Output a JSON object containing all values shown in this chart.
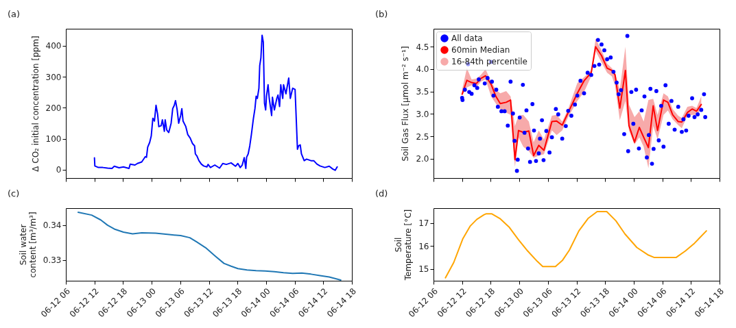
{
  "chart_data": [
    {
      "type": "line",
      "title": "(a)",
      "ylabel": "Δ CO₂ initial concentration [ppm]",
      "tick_labels": "y",
      "xlim": [
        "--06-12T06:00",
        "--06-14T18:00"
      ],
      "xticks": [
        {
          "value": "--06-12T06:00",
          "label": "06-12 06"
        },
        {
          "value": "--06-12T12:00",
          "label": "06-12 12"
        },
        {
          "value": "--06-12T18:00",
          "label": "06-12 18"
        },
        {
          "value": "--06-13T00:00",
          "label": "06-13 00"
        },
        {
          "value": "--06-13T06:00",
          "label": "06-13 06"
        },
        {
          "value": "--06-13T12:00",
          "label": "06-13 12"
        },
        {
          "value": "--06-13T18:00",
          "label": "06-13 18"
        },
        {
          "value": "--06-14T00:00",
          "label": "06-14 00"
        },
        {
          "value": "--06-14T06:00",
          "label": "06-14 06"
        },
        {
          "value": "--06-14T12:00",
          "label": "06-14 12"
        },
        {
          "value": "--06-14T18:00",
          "label": "06-14 18"
        }
      ],
      "ylim": [
        -27,
        455
      ],
      "yticks": [
        0,
        100,
        200,
        300,
        400
      ],
      "x": [
        "--06-12T12:00",
        "--06-12T12:05",
        "--06-12T12:50",
        "--06-12T13:45",
        "--06-12T14:45",
        "--06-12T15:40",
        "--06-12T16:10",
        "--06-12T17:10",
        "--06-12T18:05",
        "--06-12T19:15",
        "--06-12T19:30",
        "--06-12T20:30",
        "--06-12T21:00",
        "--06-12T21:55",
        "--06-12T22:40",
        "--06-12T22:55",
        "--06-12T23:10",
        "--06-12T23:35",
        "--06-12T23:55",
        "--06-13T00:15",
        "--06-13T00:35",
        "--06-13T00:55",
        "--06-13T01:15",
        "--06-13T01:30",
        "--06-13T02:00",
        "--06-13T02:15",
        "--06-13T02:40",
        "--06-13T02:50",
        "--06-13T03:10",
        "--06-13T03:35",
        "--06-13T04:05",
        "--06-13T04:25",
        "--06-13T04:45",
        "--06-13T05:00",
        "--06-13T05:20",
        "--06-13T05:40",
        "--06-13T06:05",
        "--06-13T06:20",
        "--06-13T06:35",
        "--06-13T07:10",
        "--06-13T07:35",
        "--06-13T08:05",
        "--06-13T08:35",
        "--06-13T09:00",
        "--06-13T09:10",
        "--06-13T09:30",
        "--06-13T09:55",
        "--06-13T10:25",
        "--06-13T10:55",
        "--06-13T11:35",
        "--06-13T11:50",
        "--06-13T12:20",
        "--06-13T13:15",
        "--06-13T14:15",
        "--06-13T14:55",
        "--06-13T15:40",
        "--06-13T16:40",
        "--06-13T17:35",
        "--06-13T18:05",
        "--06-13T18:35",
        "--06-13T19:00",
        "--06-13T19:25",
        "--06-13T19:45",
        "--06-13T19:55",
        "--06-13T20:15",
        "--06-13T20:35",
        "--06-13T20:55",
        "--06-13T21:20",
        "--06-13T21:40",
        "--06-13T21:55",
        "--06-13T22:10",
        "--06-13T22:30",
        "--06-13T22:40",
        "--06-13T22:55",
        "--06-13T23:10",
        "--06-13T23:25",
        "--06-13T23:40",
        "--06-13T23:55",
        "--06-14T00:05",
        "--06-14T00:25",
        "--06-14T00:40",
        "--06-14T01:10",
        "--06-14T01:20",
        "--06-14T01:45",
        "--06-14T02:15",
        "--06-14T02:30",
        "--06-14T02:50",
        "--06-14T03:05",
        "--06-14T03:30",
        "--06-14T03:40",
        "--06-14T04:10",
        "--06-14T04:45",
        "--06-14T05:05",
        "--06-14T05:35",
        "--06-14T06:05",
        "--06-14T06:35",
        "--06-14T06:50",
        "--06-14T07:10",
        "--06-14T07:25",
        "--06-14T08:00",
        "--06-14T08:30",
        "--06-14T09:25",
        "--06-14T10:00",
        "--06-14T10:40",
        "--06-14T11:20",
        "--06-14T12:20",
        "--06-14T13:15",
        "--06-14T14:00",
        "--06-14T14:30",
        "--06-14T14:55"
      ],
      "series": [
        {
          "color": "#0000ff",
          "values": [
            38,
            12,
            7,
            7,
            5,
            4,
            11,
            6,
            9,
            4,
            18,
            15,
            20,
            25,
            42,
            40,
            73,
            88,
            109,
            166,
            157,
            208,
            179,
            139,
            142,
            161,
            124,
            161,
            128,
            120,
            150,
            197,
            208,
            223,
            195,
            150,
            175,
            197,
            157,
            139,
            113,
            102,
            84,
            77,
            51,
            44,
            29,
            18,
            12,
            9,
            17,
            7,
            15,
            5,
            20,
            17,
            22,
            11,
            20,
            7,
            15,
            39,
            4,
            40,
            51,
            77,
            113,
            164,
            197,
            237,
            230,
            263,
            336,
            361,
            434,
            412,
            215,
            193,
            237,
            274,
            230,
            175,
            234,
            193,
            230,
            241,
            204,
            274,
            230,
            274,
            245,
            296,
            230,
            263,
            259,
            66,
            77,
            80,
            51,
            29,
            34,
            29,
            29,
            18,
            12,
            7,
            11,
            2,
            -2,
            9
          ]
        }
      ]
    },
    {
      "type": "line",
      "title": "(b)",
      "ylabel": "Soil Gas Flux [μmol m⁻² s⁻¹]",
      "tick_labels": "y",
      "legend": "top left",
      "xlim": [
        "--06-12T06:00",
        "--06-14T18:00"
      ],
      "xticks": [
        {
          "value": "--06-12T06:00",
          "label": "06-12 06"
        },
        {
          "value": "--06-12T12:00",
          "label": "06-12 12"
        },
        {
          "value": "--06-12T18:00",
          "label": "06-12 18"
        },
        {
          "value": "--06-13T00:00",
          "label": "06-13 00"
        },
        {
          "value": "--06-13T06:00",
          "label": "06-13 06"
        },
        {
          "value": "--06-13T12:00",
          "label": "06-13 12"
        },
        {
          "value": "--06-13T18:00",
          "label": "06-13 18"
        },
        {
          "value": "--06-14T00:00",
          "label": "06-14 00"
        },
        {
          "value": "--06-14T06:00",
          "label": "06-14 06"
        },
        {
          "value": "--06-14T12:00",
          "label": "06-14 12"
        },
        {
          "value": "--06-14T18:00",
          "label": "06-14 18"
        }
      ],
      "ylim": [
        1.57,
        4.9
      ],
      "yticks": [
        {
          "value": 2,
          "label": "2.0"
        },
        {
          "value": 2.5,
          "label": "2.5"
        },
        {
          "value": 3,
          "label": "3.0"
        },
        {
          "value": 3.5,
          "label": "3.5"
        },
        {
          "value": 4,
          "label": "4.0"
        },
        {
          "value": 4.5,
          "label": "4.5"
        }
      ],
      "series": [
        {
          "name": "All data",
          "type": "scatter",
          "marker": "circle",
          "color": "#0000ff",
          "x": [
            "--06-12T12:00",
            "--06-12T12:05",
            "--06-12T12:35",
            "--06-12T13:15",
            "--06-12T13:30",
            "--06-12T14:00",
            "--06-12T14:35",
            "--06-12T15:10",
            "--06-12T15:30",
            "--06-12T16:45",
            "--06-12T17:20",
            "--06-12T18:05",
            "--06-12T18:15",
            "--06-12T18:35",
            "--06-12T19:10",
            "--06-12T19:30",
            "--06-12T20:15",
            "--06-12T20:55",
            "--06-12T21:35",
            "--06-12T22:10",
            "--06-12T22:40",
            "--06-12T23:00",
            "--06-12T23:30",
            "--06-12T23:40",
            "--06-13T00:05",
            "--06-13T00:45",
            "--06-13T01:05",
            "--06-13T01:30",
            "--06-13T01:50",
            "--06-13T02:15",
            "--06-13T02:45",
            "--06-13T03:05",
            "--06-13T03:30",
            "--06-13T04:05",
            "--06-13T04:20",
            "--06-13T04:45",
            "--06-13T05:05",
            "--06-13T05:40",
            "--06-13T06:20",
            "--06-13T06:50",
            "--06-13T07:40",
            "--06-13T08:10",
            "--06-13T09:00",
            "--06-13T09:45",
            "--06-13T10:15",
            "--06-13T10:55",
            "--06-13T11:40",
            "--06-13T12:10",
            "--06-13T12:50",
            "--06-13T13:35",
            "--06-13T14:20",
            "--06-13T15:05",
            "--06-13T15:45",
            "--06-13T16:30",
            "--06-13T16:45",
            "--06-13T17:15",
            "--06-13T17:50",
            "--06-13T18:25",
            "--06-13T19:10",
            "--06-13T19:45",
            "--06-13T20:25",
            "--06-13T20:50",
            "--06-13T21:20",
            "--06-13T22:00",
            "--06-13T22:40",
            "--06-13T22:50",
            "--06-13T23:30",
            "--06-13T23:55",
            "--06-14T00:30",
            "--06-14T01:05",
            "--06-14T01:40",
            "--06-14T02:15",
            "--06-14T02:45",
            "--06-14T03:10",
            "--06-14T03:30",
            "--06-14T03:50",
            "--06-14T04:10",
            "--06-14T04:45",
            "--06-14T05:15",
            "--06-14T05:45",
            "--06-14T06:15",
            "--06-14T06:40",
            "--06-14T07:20",
            "--06-14T07:55",
            "--06-14T08:35",
            "--06-14T09:20",
            "--06-14T10:05",
            "--06-14T10:25",
            "--06-14T11:00",
            "--06-14T11:30",
            "--06-14T12:15",
            "--06-14T12:45",
            "--06-14T13:25",
            "--06-14T14:10",
            "--06-14T14:45",
            "--06-14T15:00"
          ],
          "values": [
            3.36,
            3.31,
            3.54,
            4.11,
            3.49,
            3.45,
            3.64,
            3.58,
            3.77,
            3.68,
            3.8,
            4.16,
            3.72,
            3.41,
            3.54,
            3.16,
            3.06,
            3.06,
            2.74,
            3.72,
            3.01,
            2.4,
            1.73,
            1.98,
            2.92,
            3.65,
            2.58,
            3.08,
            2.23,
            1.93,
            3.22,
            2.63,
            1.95,
            2.12,
            2.45,
            2.86,
            1.97,
            2.62,
            2.14,
            2.48,
            3.11,
            2.99,
            2.45,
            2.73,
            3.07,
            2.96,
            3.21,
            3.41,
            3.74,
            3.46,
            3.92,
            3.87,
            4.07,
            4.65,
            4.1,
            4.55,
            4.42,
            4.22,
            4.26,
            3.94,
            3.7,
            3.44,
            3.53,
            2.55,
            4.74,
            2.17,
            3.49,
            2.78,
            3.54,
            2.23,
            3.08,
            3.39,
            2.03,
            2.53,
            3.56,
            1.89,
            2.22,
            3.51,
            2.41,
            3.18,
            2.27,
            3.64,
            2.78,
            3.29,
            2.65,
            3.16,
            2.6,
            2.88,
            2.63,
            2.96,
            3.35,
            2.93,
            2.99,
            3.09,
            3.44,
            2.93
          ]
        },
        {
          "name": "60min Median",
          "color": "#ff0000",
          "x": [
            "--06-12T12:00",
            "--06-12T13:00",
            "--06-12T14:00",
            "--06-12T15:00",
            "--06-12T15:55",
            "--06-12T16:55",
            "--06-12T18:05",
            "--06-12T19:05",
            "--06-12T20:00",
            "--06-12T21:15",
            "--06-12T22:10",
            "--06-12T23:05",
            "--06-12T23:50",
            "--06-13T00:50",
            "--06-13T02:00",
            "--06-13T03:00",
            "--06-13T04:05",
            "--06-13T05:10",
            "--06-13T06:50",
            "--06-13T07:50",
            "--06-13T09:00",
            "--06-13T10:15",
            "--06-13T12:10",
            "--06-13T13:35",
            "--06-13T15:05",
            "--06-13T16:00",
            "--06-13T17:15",
            "--06-13T18:25",
            "--06-13T19:25",
            "--06-13T20:05",
            "--06-13T21:05",
            "--06-13T22:15",
            "--06-13T23:00",
            "--06-14T00:10",
            "--06-14T01:10",
            "--06-14T02:05",
            "--06-14T03:05",
            "--06-14T04:05",
            "--06-14T05:00",
            "--06-14T06:15",
            "--06-14T07:10",
            "--06-14T08:10",
            "--06-14T09:20",
            "--06-14T10:05",
            "--06-14T11:15",
            "--06-14T12:15",
            "--06-14T13:10",
            "--06-14T14:10"
          ],
          "values": [
            3.44,
            3.75,
            3.7,
            3.68,
            3.79,
            3.85,
            3.66,
            3.39,
            3.23,
            3.26,
            3.31,
            1.98,
            2.63,
            2.59,
            2.62,
            2.07,
            2.3,
            2.19,
            2.83,
            2.84,
            2.75,
            3.03,
            3.46,
            3.74,
            3.92,
            4.5,
            4.3,
            4.02,
            3.97,
            3.87,
            3.13,
            3.97,
            2.74,
            2.37,
            2.7,
            2.48,
            2.25,
            3.18,
            2.63,
            3.31,
            3.26,
            2.98,
            2.83,
            2.82,
            3.03,
            3.11,
            3.06,
            3.21
          ],
          "lower": [
            3.41,
            3.59,
            3.64,
            3.59,
            3.72,
            3.77,
            3.39,
            3.23,
            3.11,
            3.03,
            2.98,
            1.82,
            2.48,
            2.27,
            2.17,
            2.02,
            2.07,
            2.1,
            2.63,
            2.53,
            2.63,
            2.93,
            3.29,
            3.49,
            3.84,
            4.4,
            4.15,
            3.92,
            3.84,
            3.64,
            2.86,
            3.29,
            2.63,
            2.32,
            2.48,
            2.27,
            1.79,
            2.73,
            2.43,
            2.98,
            3.08,
            2.88,
            2.75,
            2.68,
            2.96,
            2.98,
            2.98,
            3.11
          ],
          "upper": [
            3.54,
            4.02,
            3.77,
            3.79,
            3.87,
            4.0,
            3.72,
            3.54,
            3.46,
            3.51,
            3.39,
            2.73,
            2.96,
            2.98,
            2.83,
            2.37,
            2.63,
            2.43,
            2.96,
            2.98,
            2.83,
            3.11,
            3.69,
            3.82,
            3.97,
            4.68,
            4.42,
            4.12,
            4.02,
            3.92,
            3.54,
            4.5,
            3.21,
            2.93,
            3.06,
            2.83,
            3.31,
            3.34,
            2.98,
            3.46,
            3.39,
            3.11,
            2.96,
            2.91,
            3.16,
            3.18,
            3.13,
            3.39
          ]
        },
        {
          "name": "16-84th percentile",
          "type": "area",
          "color": "#f7aaaa"
        }
      ]
    },
    {
      "type": "line",
      "title": "(c)",
      "ylabel": "Soil water\ncontent [m³/m³]",
      "xlim": [
        "--06-12T06:00",
        "--06-14T18:00"
      ],
      "xticks": [
        {
          "value": "--06-12T06:00",
          "label": "06-12 06"
        },
        {
          "value": "--06-12T12:00",
          "label": "06-12 12"
        },
        {
          "value": "--06-12T18:00",
          "label": "06-12 18"
        },
        {
          "value": "--06-13T00:00",
          "label": "06-13 00"
        },
        {
          "value": "--06-13T06:00",
          "label": "06-13 06"
        },
        {
          "value": "--06-13T12:00",
          "label": "06-13 12"
        },
        {
          "value": "--06-13T18:00",
          "label": "06-13 18"
        },
        {
          "value": "--06-14T00:00",
          "label": "06-14 00"
        },
        {
          "value": "--06-14T06:00",
          "label": "06-14 06"
        },
        {
          "value": "--06-14T12:00",
          "label": "06-14 12"
        },
        {
          "value": "--06-14T18:00",
          "label": "06-14 18"
        }
      ],
      "ylim": [
        0.324,
        0.3449
      ],
      "yticks": [
        0.33,
        0.34
      ],
      "x": [
        "--06-12T08:35",
        "--06-12T11:25",
        "--06-12T13:20",
        "--06-12T14:45",
        "--06-12T16:10",
        "--06-12T18:05",
        "--06-12T20:00",
        "--06-12T21:55",
        "--06-13T00:50",
        "--06-13T03:40",
        "--06-13T06:05",
        "--06-13T08:00",
        "--06-13T09:25",
        "--06-13T11:20",
        "--06-13T13:15",
        "--06-13T15:10",
        "--06-13T16:40",
        "--06-13T18:05",
        "--06-13T20:00",
        "--06-13T21:55",
        "--06-13T23:50",
        "--06-14T01:45",
        "--06-14T03:40",
        "--06-14T05:35",
        "--06-14T07:30",
        "--06-14T09:25",
        "--06-14T11:20",
        "--06-14T13:15",
        "--06-14T15:40"
      ],
      "series": [
        {
          "color": "#1f77b4",
          "values": [
            0.3437,
            0.3429,
            0.3415,
            0.34,
            0.3389,
            0.338,
            0.3375,
            0.3378,
            0.3377,
            0.3373,
            0.337,
            0.3364,
            0.3352,
            0.3335,
            0.3312,
            0.329,
            0.3282,
            0.3275,
            0.3271,
            0.3269,
            0.3268,
            0.3266,
            0.3263,
            0.3261,
            0.3262,
            0.3259,
            0.3255,
            0.3251,
            0.3242
          ]
        }
      ]
    },
    {
      "type": "line",
      "title": "(d)",
      "ylabel": "Soil\nTemperature [°C]",
      "xlim": [
        "--06-12T06:00",
        "--06-14T18:00"
      ],
      "xticks": [
        {
          "value": "--06-12T06:00",
          "label": "06-12 06"
        },
        {
          "value": "--06-12T12:00",
          "label": "06-12 12"
        },
        {
          "value": "--06-12T18:00",
          "label": "06-12 18"
        },
        {
          "value": "--06-13T00:00",
          "label": "06-13 00"
        },
        {
          "value": "--06-13T06:00",
          "label": "06-13 06"
        },
        {
          "value": "--06-13T12:00",
          "label": "06-13 12"
        },
        {
          "value": "--06-13T18:00",
          "label": "06-13 18"
        },
        {
          "value": "--06-14T00:00",
          "label": "06-14 00"
        },
        {
          "value": "--06-14T06:00",
          "label": "06-14 06"
        },
        {
          "value": "--06-14T12:00",
          "label": "06-14 12"
        },
        {
          "value": "--06-14T18:00",
          "label": "06-14 18"
        }
      ],
      "ylim": [
        14.48,
        17.65
      ],
      "yticks": [
        15,
        16,
        17
      ],
      "x": [
        "--06-12T08:30",
        "--06-12T10:15",
        "--06-12T12:10",
        "--06-12T13:40",
        "--06-12T15:05",
        "--06-12T16:35",
        "--06-12T17:00",
        "--06-12T18:15",
        "--06-12T19:55",
        "--06-12T21:55",
        "--06-12T23:50",
        "--06-13T01:45",
        "--06-13T03:45",
        "--06-13T04:55",
        "--06-13T07:35",
        "--06-13T09:05",
        "--06-13T10:30",
        "--06-13T12:30",
        "--06-13T14:25",
        "--06-13T16:20",
        "--06-13T18:20",
        "--06-13T20:15",
        "--06-13T22:10",
        "--06-14T00:40",
        "--06-14T03:05",
        "--06-14T04:15",
        "--06-14T08:55",
        "--06-14T10:50",
        "--06-14T12:45",
        "--06-14T15:15"
      ],
      "series": [
        {
          "color": "#ffa500",
          "values": [
            14.61,
            15.28,
            16.32,
            16.86,
            17.16,
            17.36,
            17.4,
            17.4,
            17.2,
            16.81,
            16.27,
            15.78,
            15.33,
            15.1,
            15.1,
            15.38,
            15.82,
            16.66,
            17.2,
            17.5,
            17.5,
            17.1,
            16.52,
            15.93,
            15.6,
            15.5,
            15.5,
            15.78,
            16.12,
            16.66
          ]
        }
      ]
    }
  ]
}
